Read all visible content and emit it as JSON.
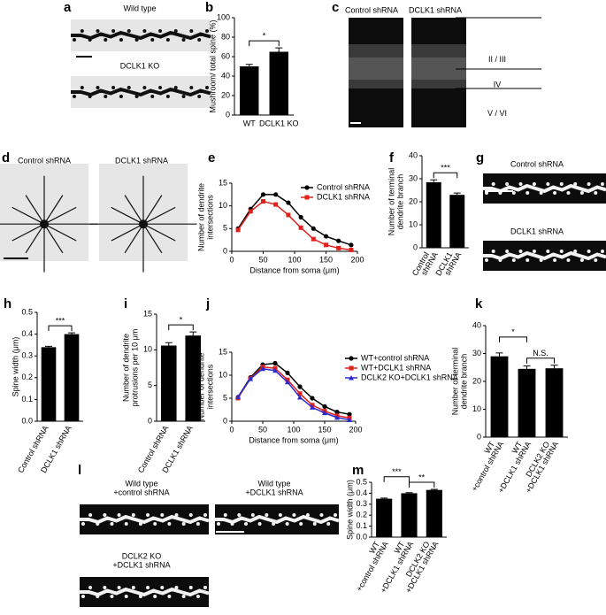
{
  "panel_letters": [
    "a",
    "b",
    "c",
    "d",
    "e",
    "f",
    "g",
    "h",
    "i",
    "j",
    "k",
    "l",
    "m"
  ],
  "images": [
    {
      "panel": "a",
      "items": [
        {
          "caption": [
            "Wild type"
          ]
        },
        {
          "caption": [
            "DCLK1 KO"
          ]
        }
      ]
    },
    {
      "panel": "c",
      "items": [
        {
          "caption": [
            "Control shRNA"
          ]
        },
        {
          "caption": [
            "DCLK1 shRNA"
          ]
        }
      ],
      "layers": [
        "II / III",
        "IV",
        "V / VI"
      ]
    },
    {
      "panel": "d",
      "items": [
        {
          "caption": [
            "Control shRNA"
          ]
        },
        {
          "caption": [
            "DCLK1 shRNA"
          ]
        }
      ]
    },
    {
      "panel": "g",
      "items": [
        {
          "caption": [
            "Control shRNA"
          ]
        },
        {
          "caption": [
            "DCLK1 shRNA"
          ]
        }
      ]
    },
    {
      "panel": "l",
      "items": [
        {
          "caption": [
            "Wild type",
            "+control shRNA"
          ]
        },
        {
          "caption": [
            "Wild type",
            "+DCLK1 shRNA"
          ]
        },
        {
          "caption": [
            "DCLK2 KO",
            "+DCLK1 shRNA"
          ]
        }
      ]
    }
  ],
  "chart_data": [
    {
      "panel": "b",
      "type": "bar",
      "ylabel": [
        "Mushroom/ total spine (%)"
      ],
      "categories": [
        [
          "WT"
        ],
        [
          "DCLK1 KO"
        ]
      ],
      "values": [
        50,
        65
      ],
      "errors": [
        2,
        4
      ],
      "color": "#000000",
      "ylim": [
        0,
        100
      ],
      "yticks": [
        0,
        20,
        40,
        60,
        80,
        100
      ],
      "significance": [
        {
          "from": 0,
          "to": 1,
          "label": "*"
        }
      ]
    },
    {
      "panel": "e",
      "type": "line",
      "ylabel": [
        "Number of dendrite",
        "intersections"
      ],
      "xlabel": "Distance from soma (μm)",
      "x": [
        10,
        30,
        50,
        70,
        90,
        110,
        130,
        150,
        170,
        190
      ],
      "xlim": [
        0,
        200
      ],
      "xticks": [
        0,
        50,
        100,
        150,
        200
      ],
      "ylim": [
        0,
        15
      ],
      "yticks": [
        0,
        5,
        10,
        15
      ],
      "series": [
        {
          "name": "Control shRNA",
          "color": "#000000",
          "marker": "circle",
          "values": [
            5,
            9.3,
            12.5,
            12.5,
            10.7,
            7.5,
            5,
            3.3,
            2.3,
            1.4
          ]
        },
        {
          "name": "DCLK1 shRNA",
          "color": "#e0201b",
          "marker": "square",
          "values": [
            4.7,
            8.8,
            11,
            10.3,
            8,
            5.2,
            2.7,
            1.4,
            0.7,
            0.3
          ]
        }
      ]
    },
    {
      "panel": "f",
      "type": "bar",
      "ylabel": [
        "Number of terminal",
        "dendrite branch"
      ],
      "categories": [
        [
          "Control",
          "shRNA"
        ],
        [
          "DCLK1",
          "shRNA"
        ]
      ],
      "values": [
        28.5,
        23
      ],
      "errors": [
        1,
        0.8
      ],
      "color": "#000000",
      "ylim": [
        0,
        40
      ],
      "yticks": [
        0,
        10,
        20,
        30,
        40
      ],
      "significance": [
        {
          "from": 0,
          "to": 1,
          "label": "***"
        }
      ]
    },
    {
      "panel": "h",
      "type": "bar",
      "ylabel": [
        "Spine width (μm)"
      ],
      "categories": [
        [
          "Control shRNA"
        ],
        [
          "DCLK1 shRNA"
        ]
      ],
      "values": [
        0.34,
        0.4
      ],
      "errors": [
        0.004,
        0.006
      ],
      "color": "#000000",
      "ylim": [
        0,
        0.5
      ],
      "yticks": [
        {
          "value": 0,
          "label": "0.0"
        },
        0.1,
        0.2,
        0.3,
        0.4,
        0.5
      ],
      "significance": [
        {
          "from": 0,
          "to": 1,
          "label": "***"
        }
      ]
    },
    {
      "panel": "i",
      "type": "bar",
      "ylabel": [
        "Number of dendrite",
        "protrusions per 10 μm"
      ],
      "categories": [
        [
          "Control shRNA"
        ],
        [
          "DCLK1 shRNA"
        ]
      ],
      "values": [
        10.6,
        12
      ],
      "errors": [
        0.4,
        0.5
      ],
      "color": "#000000",
      "ylim": [
        0,
        15
      ],
      "yticks": [
        0,
        5,
        10,
        15
      ],
      "significance": [
        {
          "from": 0,
          "to": 1,
          "label": "*"
        }
      ]
    },
    {
      "panel": "j",
      "type": "line",
      "ylabel": [
        "Number of dendrite",
        "intersections"
      ],
      "xlabel": "Distance from soma (μm)",
      "x": [
        10,
        30,
        50,
        70,
        90,
        110,
        130,
        150,
        170,
        190
      ],
      "xlim": [
        0,
        200
      ],
      "xticks": [
        0,
        50,
        100,
        150,
        200
      ],
      "ylim": [
        0,
        15
      ],
      "yticks": [
        0,
        5,
        10,
        15
      ],
      "series": [
        {
          "name": "WT+control shRNA",
          "color": "#000000",
          "marker": "circle",
          "values": [
            5.2,
            9.5,
            12.3,
            12.6,
            10.5,
            7.5,
            5,
            3.2,
            2,
            1.5
          ]
        },
        {
          "name": "WT+DCLK1 shRNA",
          "color": "#e0201b",
          "marker": "square",
          "values": [
            5,
            9.3,
            11.8,
            11.5,
            9,
            6,
            3.5,
            2.2,
            1.2,
            0.7
          ]
        },
        {
          "name": "DCLK2 KO+DCLK1 shRNA",
          "color": "#2a2ad0",
          "marker": "triangle",
          "values": [
            5.3,
            9.2,
            11.4,
            11,
            8.5,
            5.2,
            3,
            1.8,
            0.8,
            0.3
          ]
        }
      ]
    },
    {
      "panel": "k",
      "type": "bar",
      "ylabel": [
        "Number of terminal",
        "dendrite branch"
      ],
      "categories": [
        [
          "WT",
          "+control shRNA"
        ],
        [
          "WT",
          "+DCLK1 shRNA"
        ],
        [
          "DCLK2 KO",
          "+DCLK1 shRNA"
        ]
      ],
      "values": [
        29,
        24.5,
        24.7
      ],
      "errors": [
        1.2,
        1,
        1.1
      ],
      "color": "#000000",
      "ylim": [
        0,
        40
      ],
      "yticks": [
        0,
        10,
        20,
        30,
        40
      ],
      "significance": [
        {
          "from": 0,
          "to": 1,
          "label": "*"
        },
        {
          "from": 1,
          "to": 2,
          "label": "N.S."
        }
      ]
    },
    {
      "panel": "m",
      "type": "bar",
      "ylabel": [
        "Spine width (μm)"
      ],
      "categories": [
        [
          "WT",
          "+control shRNA"
        ],
        [
          "WT",
          "+DCLK1 shRNA"
        ],
        [
          "DCLK2 KO",
          "+DCLK1 shRNA"
        ]
      ],
      "values": [
        0.35,
        0.4,
        0.43
      ],
      "errors": [
        0.006,
        0.005,
        0.005
      ],
      "color": "#000000",
      "ylim": [
        0,
        0.5
      ],
      "yticks": [
        {
          "value": 0,
          "label": "0.0"
        },
        0.1,
        0.2,
        0.3,
        0.4,
        0.5
      ],
      "significance": [
        {
          "from": 0,
          "to": 1,
          "label": "***"
        },
        {
          "from": 1,
          "to": 2,
          "label": "**"
        }
      ]
    }
  ]
}
